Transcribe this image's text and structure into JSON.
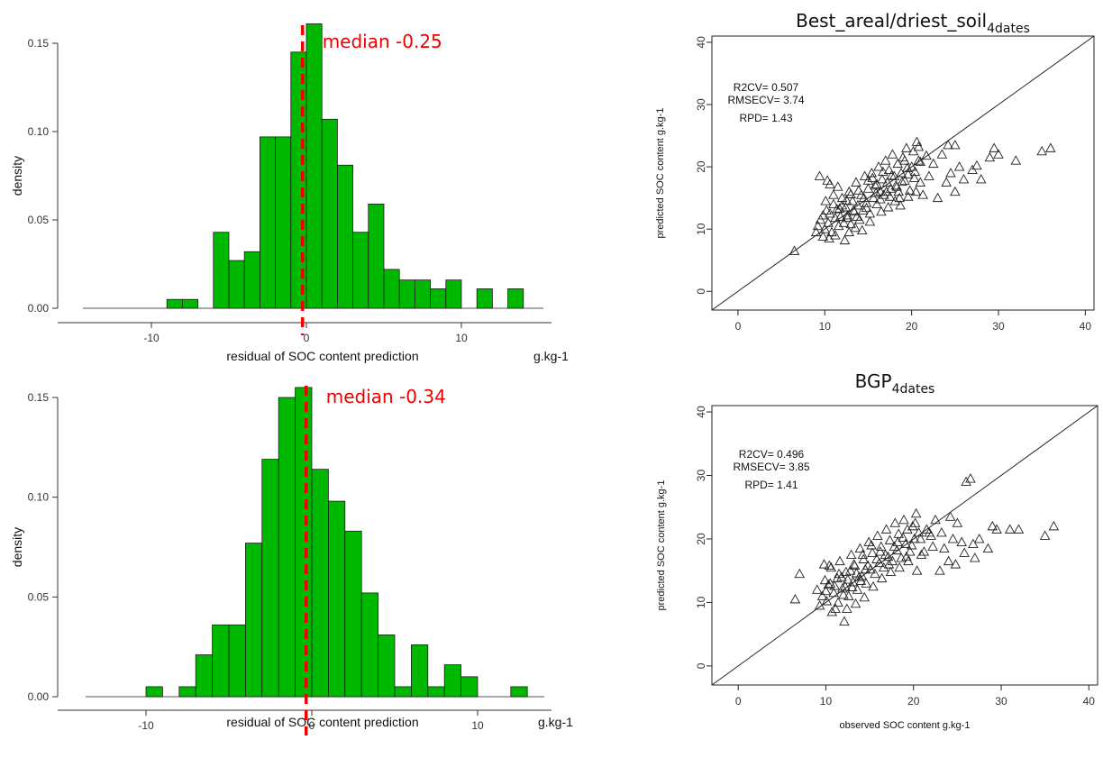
{
  "colors": {
    "bar_fill": "#00b800",
    "bar_stroke": "#1a1a1a",
    "median": "#ee0000",
    "axis": "#333333",
    "marker": "#222222"
  },
  "chart_data": [
    {
      "type": "bar",
      "panel": "histogram-top",
      "xlabel": "residual of SOC content prediction",
      "xunit": "g.kg-1",
      "ylabel": "density",
      "xlim": [
        -15,
        14
      ],
      "ylim": [
        0,
        0.16
      ],
      "xticks": [
        -10,
        0,
        10
      ],
      "yticks": [
        0.0,
        0.05,
        0.1,
        0.15
      ],
      "ytick_labels": [
        "0.00",
        "0.05",
        "0.10",
        "0.15"
      ],
      "bin_width": 1,
      "bins": [
        {
          "x0": -9,
          "value": 0.005
        },
        {
          "x0": -8,
          "value": 0.005
        },
        {
          "x0": -7,
          "value": 0.0
        },
        {
          "x0": -6,
          "value": 0.043
        },
        {
          "x0": -5,
          "value": 0.027
        },
        {
          "x0": -4,
          "value": 0.032
        },
        {
          "x0": -3,
          "value": 0.097
        },
        {
          "x0": -2,
          "value": 0.097
        },
        {
          "x0": -1,
          "value": 0.145
        },
        {
          "x0": 0,
          "value": 0.161
        },
        {
          "x0": 1,
          "value": 0.107
        },
        {
          "x0": 2,
          "value": 0.081
        },
        {
          "x0": 3,
          "value": 0.043
        },
        {
          "x0": 4,
          "value": 0.059
        },
        {
          "x0": 5,
          "value": 0.022
        },
        {
          "x0": 6,
          "value": 0.016
        },
        {
          "x0": 7,
          "value": 0.016
        },
        {
          "x0": 8,
          "value": 0.011
        },
        {
          "x0": 9,
          "value": 0.016
        },
        {
          "x0": 10,
          "value": 0.0
        },
        {
          "x0": 11,
          "value": 0.011
        },
        {
          "x0": 12,
          "value": 0.0
        },
        {
          "x0": 13,
          "value": 0.011
        }
      ],
      "median": -0.25,
      "median_label": "median -0.25"
    },
    {
      "type": "bar",
      "panel": "histogram-bottom",
      "xlabel": "residual of SOC content prediction",
      "xunit": "g.kg-1",
      "ylabel": "density",
      "xlim": [
        -15,
        14
      ],
      "ylim": [
        0,
        0.16
      ],
      "xticks": [
        -10,
        0,
        10
      ],
      "yticks": [
        0.0,
        0.05,
        0.1,
        0.15
      ],
      "ytick_labels": [
        "0.00",
        "0.05",
        "0.10",
        "0.15"
      ],
      "bin_width": 1,
      "bins": [
        {
          "x0": -10,
          "value": 0.005
        },
        {
          "x0": -9,
          "value": 0.0
        },
        {
          "x0": -8,
          "value": 0.005
        },
        {
          "x0": -7,
          "value": 0.021
        },
        {
          "x0": -6,
          "value": 0.036
        },
        {
          "x0": -5,
          "value": 0.036
        },
        {
          "x0": -4,
          "value": 0.077
        },
        {
          "x0": -3,
          "value": 0.119
        },
        {
          "x0": -2,
          "value": 0.15
        },
        {
          "x0": -1,
          "value": 0.155
        },
        {
          "x0": 0,
          "value": 0.114
        },
        {
          "x0": 1,
          "value": 0.098
        },
        {
          "x0": 2,
          "value": 0.083
        },
        {
          "x0": 3,
          "value": 0.052
        },
        {
          "x0": 4,
          "value": 0.031
        },
        {
          "x0": 5,
          "value": 0.005
        },
        {
          "x0": 6,
          "value": 0.026
        },
        {
          "x0": 7,
          "value": 0.005
        },
        {
          "x0": 8,
          "value": 0.016
        },
        {
          "x0": 9,
          "value": 0.01
        },
        {
          "x0": 10,
          "value": 0.0
        },
        {
          "x0": 11,
          "value": 0.0
        },
        {
          "x0": 12,
          "value": 0.005
        }
      ],
      "median": -0.34,
      "median_label": "median -0.34"
    },
    {
      "type": "scatter",
      "panel": "scatter-top",
      "title_main": "Best_areal/driest_soil",
      "title_sub": "4dates",
      "xlabel": "",
      "ylabel": "predicted SOC content g.kg-1",
      "xlim": [
        -3,
        41
      ],
      "ylim": [
        -3,
        41
      ],
      "xticks": [
        0,
        10,
        20,
        30,
        40
      ],
      "yticks": [
        0,
        10,
        20,
        30,
        40
      ],
      "stats": [
        "R2CV= 0.507",
        "RMSECV= 3.74",
        "RPD= 1.43"
      ],
      "marker": "triangle",
      "points": [
        [
          6.5,
          6.5
        ],
        [
          9.2,
          10.5
        ],
        [
          9.5,
          11.5
        ],
        [
          9.8,
          12.2
        ],
        [
          10.0,
          10.0
        ],
        [
          10.2,
          13.0
        ],
        [
          10.4,
          11.0
        ],
        [
          10.6,
          12.5
        ],
        [
          10.8,
          9.5
        ],
        [
          11.0,
          14.0
        ],
        [
          11.2,
          11.8
        ],
        [
          11.4,
          13.2
        ],
        [
          11.6,
          10.5
        ],
        [
          11.8,
          12.0
        ],
        [
          12.0,
          15.0
        ],
        [
          12.2,
          11.0
        ],
        [
          12.4,
          13.5
        ],
        [
          12.6,
          12.2
        ],
        [
          12.8,
          16.0
        ],
        [
          13.0,
          10.8
        ],
        [
          13.2,
          14.5
        ],
        [
          13.4,
          12.8
        ],
        [
          13.6,
          17.5
        ],
        [
          13.8,
          13.8
        ],
        [
          14.0,
          11.5
        ],
        [
          14.2,
          15.5
        ],
        [
          14.4,
          13.0
        ],
        [
          14.6,
          18.5
        ],
        [
          14.8,
          14.2
        ],
        [
          15.0,
          16.5
        ],
        [
          15.2,
          12.5
        ],
        [
          15.4,
          19.0
        ],
        [
          15.6,
          15.0
        ],
        [
          15.8,
          17.0
        ],
        [
          16.0,
          14.0
        ],
        [
          16.2,
          20.0
        ],
        [
          16.4,
          16.0
        ],
        [
          16.6,
          18.0
        ],
        [
          16.8,
          15.5
        ],
        [
          17.0,
          21.0
        ],
        [
          17.2,
          17.5
        ],
        [
          17.4,
          19.5
        ],
        [
          17.6,
          16.5
        ],
        [
          17.8,
          22.0
        ],
        [
          18.0,
          18.5
        ],
        [
          18.2,
          17.0
        ],
        [
          18.4,
          20.5
        ],
        [
          18.6,
          15.0
        ],
        [
          18.8,
          19.0
        ],
        [
          19.0,
          21.5
        ],
        [
          19.2,
          17.8
        ],
        [
          19.4,
          23.0
        ],
        [
          19.6,
          18.8
        ],
        [
          19.8,
          16.2
        ],
        [
          20.0,
          20.0
        ],
        [
          20.2,
          22.5
        ],
        [
          20.4,
          19.2
        ],
        [
          20.6,
          24.0
        ],
        [
          20.8,
          21.0
        ],
        [
          21.0,
          17.5
        ],
        [
          9.4,
          18.5
        ],
        [
          10.3,
          17.8
        ],
        [
          10.6,
          17.2
        ],
        [
          11.5,
          16.8
        ],
        [
          9.0,
          9.5
        ],
        [
          9.8,
          8.8
        ],
        [
          10.5,
          8.5
        ],
        [
          11.2,
          9.0
        ],
        [
          12.3,
          8.2
        ],
        [
          12.8,
          9.5
        ],
        [
          13.5,
          10.2
        ],
        [
          14.3,
          9.8
        ],
        [
          15.2,
          11.2
        ],
        [
          16.5,
          12.8
        ],
        [
          17.3,
          13.5
        ],
        [
          18.1,
          14.5
        ],
        [
          18.7,
          13.8
        ],
        [
          19.6,
          15.2
        ],
        [
          20.5,
          16.0
        ],
        [
          21.3,
          15.5
        ],
        [
          22.0,
          18.5
        ],
        [
          22.5,
          20.5
        ],
        [
          23.0,
          15.0
        ],
        [
          23.5,
          22.0
        ],
        [
          24.0,
          17.5
        ],
        [
          24.5,
          19.0
        ],
        [
          25.0,
          16.0
        ],
        [
          25.5,
          20.0
        ],
        [
          26.0,
          18.0
        ],
        [
          27.0,
          19.5
        ],
        [
          27.5,
          20.2
        ],
        [
          28.0,
          18.0
        ],
        [
          29.0,
          21.5
        ],
        [
          29.5,
          23.0
        ],
        [
          30.0,
          22.0
        ],
        [
          32.0,
          21.0
        ],
        [
          35.0,
          22.5
        ],
        [
          36.0,
          23.0
        ],
        [
          24.2,
          23.5
        ],
        [
          25.0,
          23.5
        ],
        [
          12.0,
          13.8
        ],
        [
          12.5,
          14.6
        ],
        [
          13.0,
          15.6
        ],
        [
          13.3,
          13.0
        ],
        [
          13.9,
          16.2
        ],
        [
          14.5,
          15.0
        ],
        [
          15.0,
          17.8
        ],
        [
          15.5,
          18.2
        ],
        [
          16.0,
          17.2
        ],
        [
          16.7,
          19.2
        ],
        [
          17.1,
          16.0
        ],
        [
          17.7,
          18.6
        ],
        [
          18.3,
          16.8
        ],
        [
          18.9,
          17.6
        ],
        [
          19.5,
          19.8
        ],
        [
          20.3,
          18.2
        ],
        [
          21.0,
          20.8
        ],
        [
          21.7,
          21.8
        ],
        [
          20.8,
          23.2
        ],
        [
          19.2,
          21.0
        ],
        [
          10.1,
          14.5
        ],
        [
          11.0,
          15.5
        ],
        [
          11.7,
          13.3
        ],
        [
          12.6,
          11.8
        ],
        [
          13.7,
          12.0
        ],
        [
          14.8,
          13.4
        ],
        [
          15.9,
          15.8
        ],
        [
          16.4,
          14.8
        ],
        [
          17.5,
          15.2
        ],
        [
          18.5,
          16.0
        ]
      ]
    },
    {
      "type": "scatter",
      "panel": "scatter-bottom",
      "title_main": "BGP",
      "title_sub": "4dates",
      "xlabel": "observed SOC content g.kg-1",
      "ylabel": "predicted SOC content g.kg-1",
      "xlim": [
        -3,
        41
      ],
      "ylim": [
        -3,
        41
      ],
      "xticks": [
        0,
        10,
        20,
        30,
        40
      ],
      "yticks": [
        0,
        10,
        20,
        30,
        40
      ],
      "stats": [
        "R2CV= 0.496",
        "RMSECV= 3.85",
        "RPD= 1.41"
      ],
      "marker": "triangle",
      "points": [
        [
          6.5,
          10.5
        ],
        [
          7.0,
          14.5
        ],
        [
          9.0,
          12.0
        ],
        [
          9.3,
          9.5
        ],
        [
          9.6,
          11.0
        ],
        [
          9.9,
          13.5
        ],
        [
          10.1,
          10.2
        ],
        [
          10.3,
          12.8
        ],
        [
          10.6,
          15.5
        ],
        [
          10.9,
          11.5
        ],
        [
          11.1,
          9.0
        ],
        [
          11.3,
          13.8
        ],
        [
          11.6,
          16.5
        ],
        [
          11.9,
          12.2
        ],
        [
          12.1,
          7.0
        ],
        [
          12.3,
          14.8
        ],
        [
          12.6,
          11.0
        ],
        [
          12.9,
          17.5
        ],
        [
          13.1,
          13.2
        ],
        [
          13.3,
          15.8
        ],
        [
          13.6,
          12.0
        ],
        [
          13.9,
          18.5
        ],
        [
          14.1,
          14.2
        ],
        [
          14.3,
          16.8
        ],
        [
          14.6,
          13.0
        ],
        [
          14.9,
          19.5
        ],
        [
          15.1,
          15.2
        ],
        [
          15.3,
          17.8
        ],
        [
          15.6,
          14.5
        ],
        [
          15.9,
          20.5
        ],
        [
          16.1,
          16.2
        ],
        [
          16.3,
          18.8
        ],
        [
          16.6,
          15.5
        ],
        [
          16.9,
          21.5
        ],
        [
          17.1,
          17.2
        ],
        [
          17.3,
          19.8
        ],
        [
          17.6,
          16.5
        ],
        [
          17.9,
          22.5
        ],
        [
          18.1,
          18.2
        ],
        [
          18.3,
          20.8
        ],
        [
          18.6,
          17.0
        ],
        [
          18.9,
          23.0
        ],
        [
          19.1,
          19.2
        ],
        [
          19.3,
          21.5
        ],
        [
          19.6,
          18.0
        ],
        [
          19.9,
          22.0
        ],
        [
          20.1,
          20.0
        ],
        [
          20.3,
          24.0
        ],
        [
          20.6,
          21.0
        ],
        [
          20.9,
          17.5
        ],
        [
          21.5,
          21.5
        ],
        [
          22.0,
          20.5
        ],
        [
          22.5,
          23.0
        ],
        [
          23.0,
          15.0
        ],
        [
          23.5,
          18.5
        ],
        [
          24.0,
          16.5
        ],
        [
          24.5,
          20.0
        ],
        [
          25.0,
          22.5
        ],
        [
          25.5,
          19.5
        ],
        [
          26.0,
          29.0
        ],
        [
          26.5,
          29.5
        ],
        [
          27.0,
          17.0
        ],
        [
          27.5,
          20.0
        ],
        [
          28.5,
          18.5
        ],
        [
          29.0,
          22.0
        ],
        [
          29.5,
          21.5
        ],
        [
          31.0,
          21.5
        ],
        [
          32.0,
          21.5
        ],
        [
          35.0,
          20.5
        ],
        [
          36.0,
          22.0
        ],
        [
          9.8,
          16.0
        ],
        [
          10.4,
          15.8
        ],
        [
          10.7,
          8.5
        ],
        [
          11.4,
          10.0
        ],
        [
          12.4,
          9.0
        ],
        [
          13.4,
          9.8
        ],
        [
          14.4,
          10.8
        ],
        [
          15.4,
          12.5
        ],
        [
          16.4,
          13.8
        ],
        [
          17.4,
          14.8
        ],
        [
          18.4,
          15.5
        ],
        [
          19.4,
          16.5
        ],
        [
          20.4,
          15.0
        ],
        [
          21.2,
          18.0
        ],
        [
          22.2,
          18.8
        ],
        [
          23.2,
          21.0
        ],
        [
          24.2,
          23.5
        ],
        [
          24.8,
          16.0
        ],
        [
          25.8,
          17.8
        ],
        [
          26.8,
          19.2
        ],
        [
          11.8,
          14.0
        ],
        [
          12.2,
          12.5
        ],
        [
          12.8,
          15.0
        ],
        [
          13.2,
          16.0
        ],
        [
          13.8,
          14.0
        ],
        [
          14.2,
          17.5
        ],
        [
          14.8,
          15.8
        ],
        [
          15.2,
          19.0
        ],
        [
          15.8,
          16.8
        ],
        [
          16.2,
          18.0
        ],
        [
          16.8,
          17.5
        ],
        [
          17.2,
          16.0
        ],
        [
          17.8,
          18.8
        ],
        [
          18.2,
          19.5
        ],
        [
          18.8,
          20.2
        ],
        [
          19.2,
          17.2
        ],
        [
          19.8,
          19.0
        ],
        [
          20.2,
          22.5
        ],
        [
          20.8,
          20.0
        ],
        [
          21.8,
          21.0
        ],
        [
          10.0,
          11.8
        ],
        [
          10.5,
          13.0
        ],
        [
          11.0,
          12.6
        ],
        [
          11.5,
          14.5
        ],
        [
          12.0,
          11.2
        ],
        [
          12.5,
          13.6
        ],
        [
          13.0,
          12.4
        ],
        [
          13.5,
          14.6
        ],
        [
          14.0,
          13.4
        ],
        [
          14.5,
          15.2
        ]
      ]
    }
  ]
}
